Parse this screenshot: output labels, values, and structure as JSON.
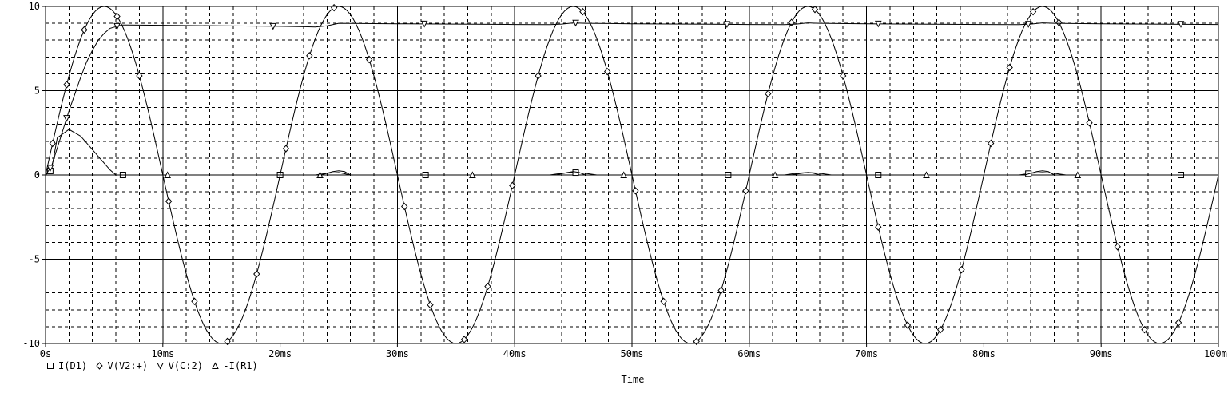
{
  "chart_data": {
    "type": "line",
    "title": "",
    "xlabel": "Time",
    "ylabel": "",
    "xlim": [
      0,
      100
    ],
    "ylim": [
      -10,
      10
    ],
    "x_unit": "ms",
    "grid": true,
    "legend_placement": "bottom-left",
    "x_ticks": [
      "0s",
      "10ms",
      "20ms",
      "30ms",
      "40ms",
      "50ms",
      "60ms",
      "70ms",
      "80ms",
      "90ms",
      "100ms"
    ],
    "y_ticks": [
      "10",
      "5",
      "0",
      "-5",
      "-10"
    ],
    "y_tick_values": [
      10,
      5,
      0,
      -5,
      -10
    ],
    "colors": {
      "trace": "#000000",
      "grid_major": "#000000",
      "grid_minor": "#000000",
      "background": "#ffffff"
    },
    "series": [
      {
        "name": "I(D1)",
        "marker": "square",
        "x": [
          0,
          0.5,
          1,
          2,
          3,
          4,
          5,
          5.5,
          6,
          7,
          20,
          23,
          24,
          25,
          26,
          30,
          43,
          44,
          45,
          46,
          47,
          50,
          63,
          64,
          65,
          66,
          67,
          70,
          83,
          84,
          85,
          86,
          87,
          90,
          100
        ],
        "values": [
          0,
          0.3,
          2.2,
          2.7,
          2.3,
          1.5,
          0.7,
          0.3,
          0,
          0,
          0,
          0,
          0.1,
          0.15,
          0,
          0,
          0,
          0.1,
          0.15,
          0.1,
          0,
          0,
          0,
          0.1,
          0.15,
          0.1,
          0,
          0,
          0,
          0.1,
          0.15,
          0.1,
          0,
          0,
          0
        ],
        "marker_x": [
          0.4,
          6.6,
          20,
          32.4,
          45.2,
          58.2,
          71,
          83.8,
          96.8
        ]
      },
      {
        "name": "V(V2:+)",
        "marker": "diamond",
        "x": [
          0,
          1.25,
          2.5,
          3.75,
          5,
          6.25,
          7.5,
          8.75,
          10,
          11.25,
          12.5,
          13.75,
          15,
          16.25,
          17.5,
          18.75,
          20,
          21.25,
          22.5,
          23.75,
          25,
          26.25,
          27.5,
          28.75,
          30,
          31.25,
          32.5,
          33.75,
          35,
          36.25,
          37.5,
          38.75,
          40,
          41.25,
          42.5,
          43.75,
          45,
          46.25,
          47.5,
          48.75,
          50,
          51.25,
          52.5,
          53.75,
          55,
          56.25,
          57.5,
          58.75,
          60,
          61.25,
          62.5,
          63.75,
          65,
          66.25,
          67.5,
          68.75,
          70,
          71.25,
          72.5,
          73.75,
          75,
          76.25,
          77.5,
          78.75,
          80,
          81.25,
          82.5,
          83.75,
          85,
          86.25,
          87.5,
          88.75,
          90,
          91.25,
          92.5,
          93.75,
          95,
          96.25,
          97.5,
          98.75,
          100
        ],
        "values": [
          0,
          3.83,
          7.07,
          9.24,
          10,
          9.24,
          7.07,
          3.83,
          0,
          -3.83,
          -7.07,
          -9.24,
          -10,
          -9.24,
          -7.07,
          -3.83,
          0,
          3.83,
          7.07,
          9.24,
          10,
          9.24,
          7.07,
          3.83,
          0,
          -3.83,
          -7.07,
          -9.24,
          -10,
          -9.24,
          -7.07,
          -3.83,
          0,
          3.83,
          7.07,
          9.24,
          10,
          9.24,
          7.07,
          3.83,
          0,
          -3.83,
          -7.07,
          -9.24,
          -10,
          -9.24,
          -7.07,
          -3.83,
          0,
          3.83,
          7.07,
          9.24,
          10,
          9.24,
          7.07,
          3.83,
          0,
          -3.83,
          -7.07,
          -9.24,
          -10,
          -9.24,
          -7.07,
          -3.83,
          0,
          3.83,
          7.07,
          9.24,
          10,
          9.24,
          7.07,
          3.83,
          0,
          -3.83,
          -7.07,
          -9.24,
          -10,
          -9.24,
          -7.07,
          -3.83,
          0
        ],
        "marker_x": [
          0.6,
          1.8,
          3.3,
          6.1,
          8,
          10.5,
          12.7,
          15.5,
          18,
          20.5,
          22.5,
          24.6,
          27.6,
          30.6,
          32.8,
          35.7,
          37.7,
          39.8,
          42,
          45.8,
          47.9,
          50.3,
          52.7,
          55.5,
          57.6,
          59.7,
          61.6,
          63.6,
          65.6,
          68,
          71,
          73.5,
          76.3,
          78.1,
          80.6,
          82.2,
          84.2,
          86.4,
          89,
          91.4,
          93.7,
          96.6
        ]
      },
      {
        "name": "V(C:2)",
        "marker": "triangle-down",
        "x": [
          0,
          0.5,
          1,
          1.5,
          2,
          2.5,
          3,
          3.5,
          4,
          4.5,
          5,
          5.5,
          6,
          6.5,
          7,
          10,
          15,
          20,
          22,
          23,
          24,
          25,
          30,
          40,
          43,
          44,
          45,
          46,
          50,
          60,
          63,
          64,
          65,
          66,
          70,
          80,
          83,
          84,
          85,
          86,
          90,
          100
        ],
        "values": [
          0,
          0.5,
          1.6,
          2.7,
          3.8,
          4.8,
          5.8,
          6.7,
          7.4,
          8.0,
          8.4,
          8.7,
          8.8,
          8.9,
          8.9,
          8.88,
          8.85,
          8.82,
          8.8,
          8.78,
          8.85,
          9.0,
          8.97,
          8.93,
          8.92,
          8.95,
          9.02,
          9.0,
          8.97,
          8.93,
          8.92,
          8.95,
          9.02,
          9.0,
          8.97,
          8.93,
          8.92,
          8.95,
          9.02,
          9.0,
          8.97,
          8.93
        ],
        "marker_x": [
          0.4,
          1.8,
          6.1,
          19.4,
          32.3,
          45.2,
          58.1,
          71,
          83.8,
          96.8
        ]
      },
      {
        "name": "-I(R1)",
        "marker": "triangle-up",
        "x": [
          0,
          10,
          20,
          23.5,
          24.5,
          25,
          25.5,
          26,
          30,
          43.5,
          44.5,
          45,
          45.5,
          46,
          50,
          63.5,
          64.5,
          65,
          65.5,
          66,
          70,
          83.5,
          84.5,
          85,
          85.5,
          86,
          90,
          100
        ],
        "values": [
          0,
          0,
          0,
          0,
          0.2,
          0.25,
          0.2,
          0,
          0,
          0,
          0.15,
          0.2,
          0.15,
          0,
          0,
          0,
          0.1,
          0.15,
          0.1,
          0,
          0,
          0,
          0.2,
          0.25,
          0.2,
          0,
          0,
          0
        ],
        "marker_x": [
          10.4,
          23.4,
          36.4,
          49.3,
          62.2,
          75.1,
          88
        ]
      }
    ]
  }
}
